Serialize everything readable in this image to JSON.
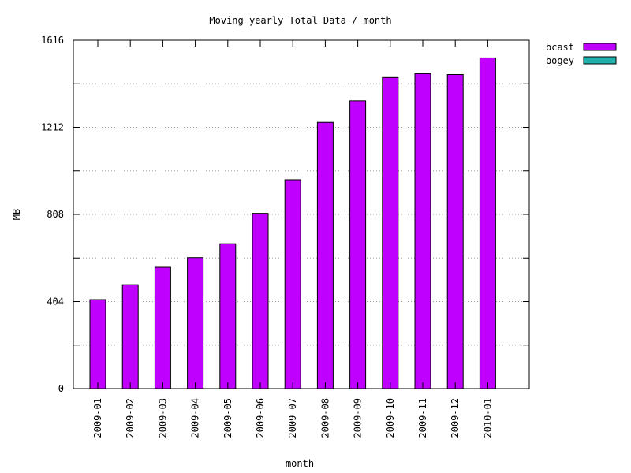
{
  "chart_data": {
    "type": "bar",
    "title": "Moving yearly Total Data / month",
    "xlabel": "month",
    "ylabel": "MB",
    "ylim": [
      0,
      1616
    ],
    "yticks": [
      0,
      404,
      808,
      1212,
      1616
    ],
    "grid": true,
    "legend_position": "outside-top-right",
    "categories": [
      "2009-01",
      "2009-02",
      "2009-03",
      "2009-04",
      "2009-05",
      "2009-06",
      "2009-07",
      "2009-08",
      "2009-09",
      "2009-10",
      "2009-11",
      "2009-12",
      "2010-01"
    ],
    "series": [
      {
        "name": "bcast",
        "color": "#bf00ff",
        "values": [
          413,
          482,
          563,
          608,
          672,
          813,
          969,
          1235,
          1335,
          1443,
          1461,
          1457,
          1534
        ]
      },
      {
        "name": "bogey",
        "color": "#20b2aa",
        "values": [
          0,
          0,
          0,
          0,
          0,
          0,
          0,
          0,
          0,
          0,
          0,
          0,
          0
        ]
      }
    ]
  }
}
